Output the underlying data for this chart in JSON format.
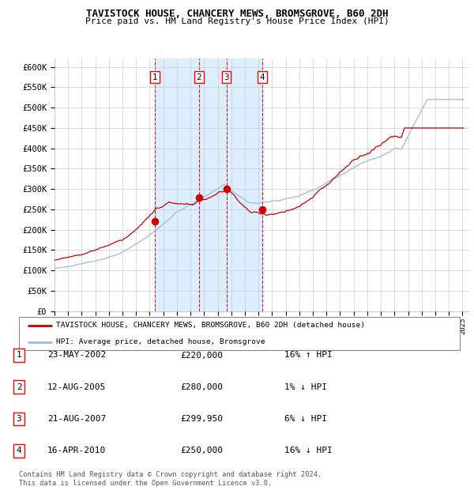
{
  "title": "TAVISTOCK HOUSE, CHANCERY MEWS, BROMSGROVE, B60 2DH",
  "subtitle": "Price paid vs. HM Land Registry's House Price Index (HPI)",
  "ylabel_ticks": [
    "£0",
    "£50K",
    "£100K",
    "£150K",
    "£200K",
    "£250K",
    "£300K",
    "£350K",
    "£400K",
    "£450K",
    "£500K",
    "£550K",
    "£600K"
  ],
  "ytick_values": [
    0,
    50000,
    100000,
    150000,
    200000,
    250000,
    300000,
    350000,
    400000,
    450000,
    500000,
    550000,
    600000
  ],
  "ylim": [
    0,
    620000
  ],
  "xlim_start": 1995.0,
  "xlim_end": 2025.5,
  "sale_dates": [
    2002.39,
    2005.62,
    2007.64,
    2010.29
  ],
  "sale_prices": [
    220000,
    280000,
    299950,
    250000
  ],
  "sale_labels": [
    "1",
    "2",
    "3",
    "4"
  ],
  "vspan_color": "#ddeeff",
  "vline_color": "#cc0000",
  "red_line_color": "#cc0000",
  "blue_line_color": "#99bbdd",
  "background_color": "#ffffff",
  "grid_color": "#cccccc",
  "legend_entries": [
    "TAVISTOCK HOUSE, CHANCERY MEWS, BROMSGROVE, B60 2DH (detached house)",
    "HPI: Average price, detached house, Bromsgrove"
  ],
  "table_rows": [
    [
      "1",
      "23-MAY-2002",
      "£220,000",
      "16% ↑ HPI"
    ],
    [
      "2",
      "12-AUG-2005",
      "£280,000",
      "1% ↓ HPI"
    ],
    [
      "3",
      "21-AUG-2007",
      "£299,950",
      "6% ↓ HPI"
    ],
    [
      "4",
      "16-APR-2010",
      "£250,000",
      "16% ↓ HPI"
    ]
  ],
  "footnote": "Contains HM Land Registry data © Crown copyright and database right 2024.\nThis data is licensed under the Open Government Licence v3.0.",
  "xtick_years": [
    1995,
    1996,
    1997,
    1998,
    1999,
    2000,
    2001,
    2002,
    2003,
    2004,
    2005,
    2006,
    2007,
    2008,
    2009,
    2010,
    2011,
    2012,
    2013,
    2014,
    2015,
    2016,
    2017,
    2018,
    2019,
    2020,
    2021,
    2022,
    2023,
    2024,
    2025
  ]
}
